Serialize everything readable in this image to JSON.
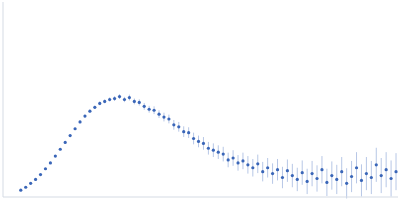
{
  "chart_data": {
    "type": "scatter",
    "x": [
      18,
      23,
      28,
      33,
      38,
      43,
      48,
      53,
      58,
      63,
      68,
      73,
      78,
      83,
      88,
      93,
      98,
      103,
      108,
      113,
      118,
      123,
      128,
      133,
      138,
      143,
      148,
      153,
      158,
      163,
      168,
      173,
      178,
      183,
      188,
      193,
      198,
      203,
      208,
      213,
      218,
      223,
      228,
      233,
      238,
      243,
      248,
      253,
      258,
      263,
      268,
      273,
      278,
      283,
      288,
      293,
      298,
      303,
      308,
      313,
      318,
      323,
      328,
      333,
      338,
      343,
      348,
      353,
      358,
      363,
      368,
      373,
      378,
      383,
      388,
      393,
      398
    ],
    "values": [
      7,
      10,
      14,
      18,
      23,
      29,
      35,
      42,
      49,
      56,
      63,
      70,
      77,
      83,
      88,
      92,
      96,
      98,
      100,
      101,
      103,
      100,
      102,
      98,
      97,
      93,
      90,
      89,
      85,
      82,
      80,
      74,
      72,
      67,
      66,
      60,
      57,
      55,
      50,
      48,
      46,
      44,
      38,
      40,
      35,
      37,
      33,
      30,
      34,
      26,
      30,
      24,
      28,
      20,
      27,
      22,
      18,
      25,
      16,
      24,
      19,
      28,
      15,
      22,
      18,
      26,
      14,
      21,
      30,
      17,
      24,
      20,
      33,
      22,
      28,
      19,
      26
    ],
    "errors": [
      0.5,
      0.5,
      0.5,
      0.6,
      0.7,
      0.8,
      0.9,
      1,
      1,
      1,
      1.2,
      1.2,
      1.3,
      1.5,
      1.5,
      1.7,
      2,
      2,
      2.2,
      2.5,
      2.5,
      2.7,
      3,
      3,
      3.2,
      3.5,
      3.5,
      4,
      4,
      4.5,
      4.5,
      5,
      5,
      5.5,
      5.5,
      6,
      6,
      6.5,
      6.5,
      7,
      7,
      7.5,
      7.5,
      8,
      8,
      8.5,
      9,
      9,
      9.5,
      10,
      10,
      10.5,
      11,
      11,
      11.5,
      12,
      12,
      12.5,
      13,
      13,
      13.5,
      14,
      14,
      14.5,
      15,
      15,
      15.5,
      16,
      16,
      16.5,
      17,
      17,
      17.5,
      18,
      18,
      18.5,
      19
    ],
    "color": "#3a66b8",
    "marker": "circle",
    "xlim": [
      0,
      400
    ],
    "xticks": [
      115
    ],
    "ylim": [
      0,
      200
    ],
    "yticks": [
      100
    ],
    "grid": true,
    "tick_labels": false
  }
}
